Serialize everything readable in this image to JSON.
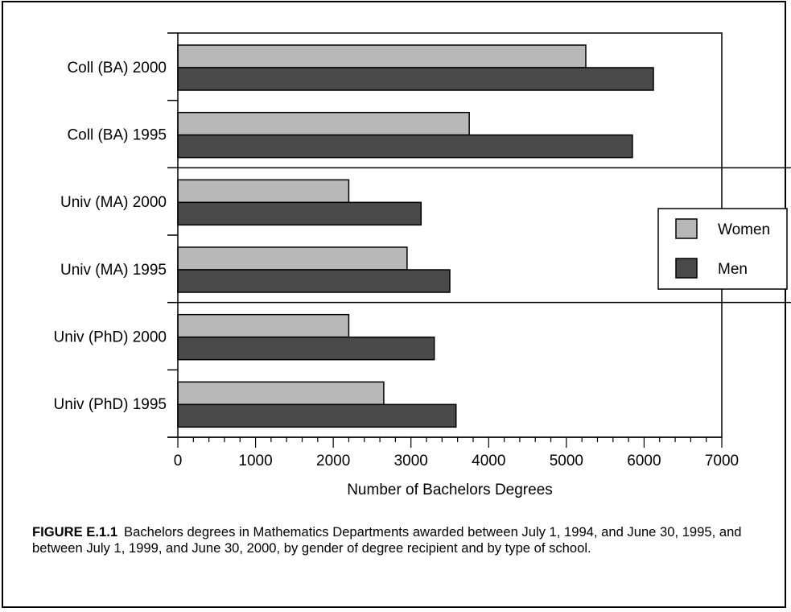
{
  "chart_data": {
    "type": "bar",
    "orientation": "horizontal",
    "categories": [
      "Coll (BA) 2000",
      "Coll (BA) 1995",
      "Univ (MA) 2000",
      "Univ (MA) 1995",
      "Univ (PhD) 2000",
      "Univ (PhD) 1995"
    ],
    "series": [
      {
        "name": "Women",
        "color": "#b8b8b8",
        "values": [
          5250,
          3750,
          2200,
          2950,
          2200,
          2650
        ]
      },
      {
        "name": "Men",
        "color": "#4a4a4a",
        "values": [
          6120,
          5850,
          3130,
          3500,
          3300,
          3580
        ]
      }
    ],
    "xlabel": "Number of Bachelors Degrees",
    "xlim": [
      0,
      7000
    ],
    "xticks": [
      0,
      1000,
      2000,
      3000,
      4000,
      5000,
      6000,
      7000
    ],
    "legend_position": "right",
    "grid": false
  },
  "caption": {
    "label": "FIGURE E.1.1",
    "text": "Bachelors degrees in Mathematics Departments awarded between July 1, 1994, and June 30, 1995, and between July 1, 1999, and June 30, 2000, by gender of degree recipient and by type of school."
  }
}
